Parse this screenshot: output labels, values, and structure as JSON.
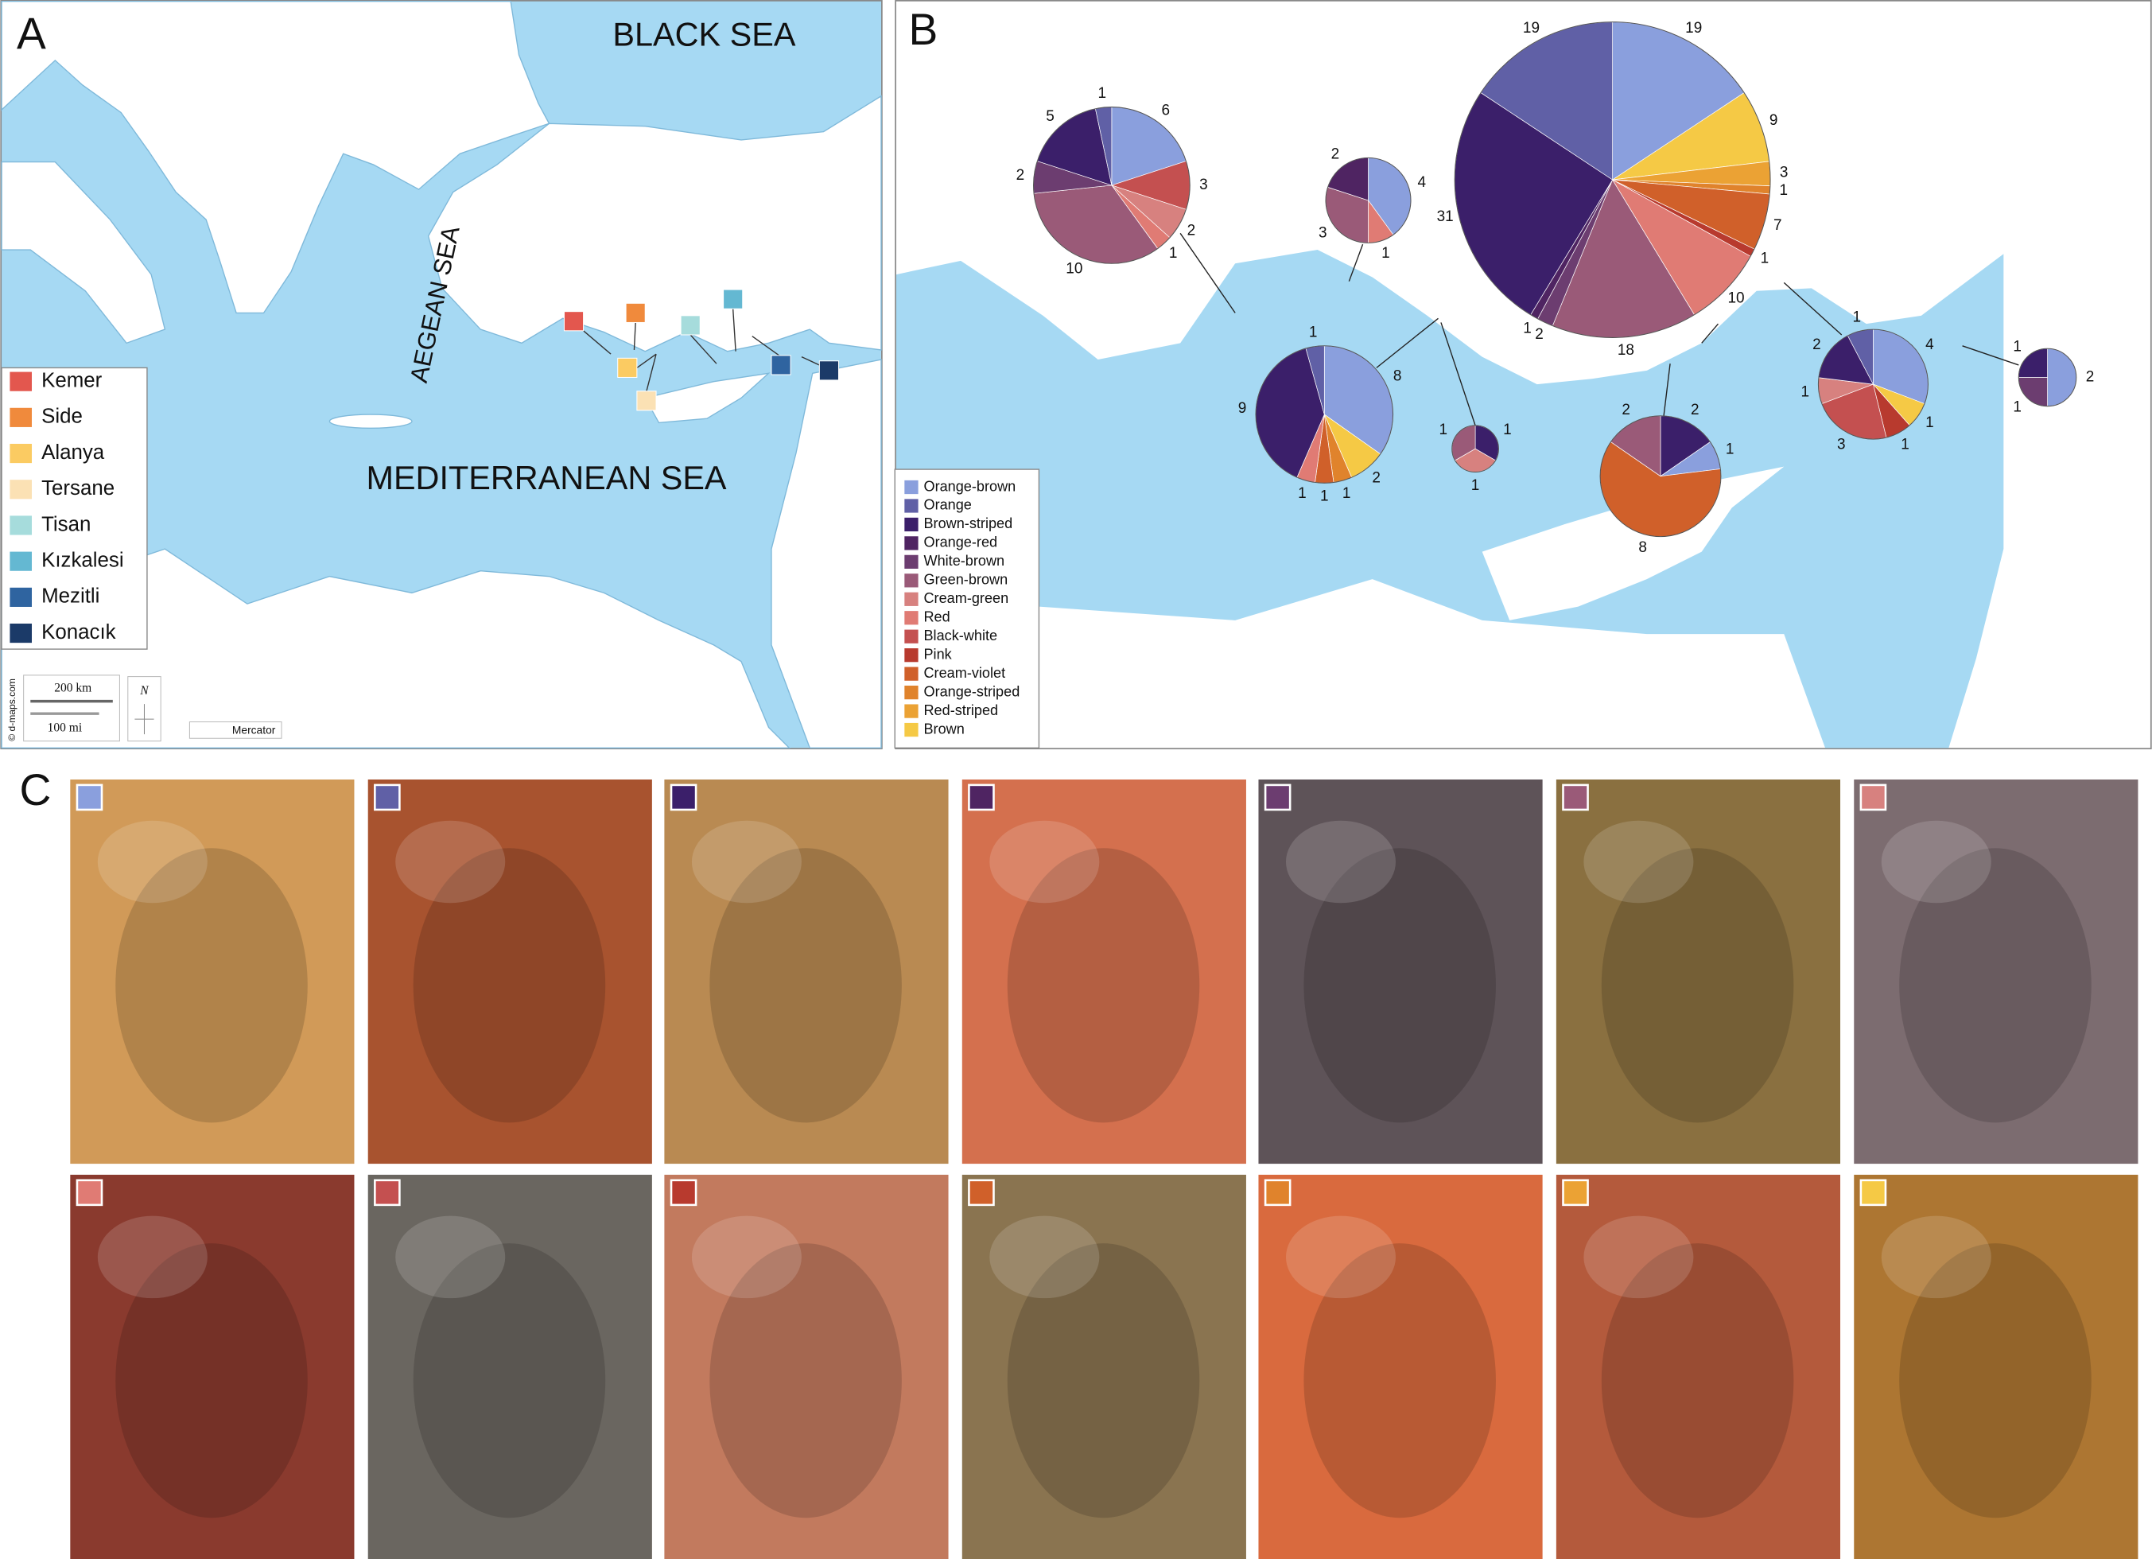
{
  "panels": {
    "a": "A",
    "b": "B",
    "c": "C"
  },
  "map_a": {
    "sea_labels": [
      "BLACK SEA",
      "AEGEAN SEA",
      "MEDITERRANEAN SEA"
    ],
    "sites": [
      {
        "name": "Kemer",
        "color": "#e3574e"
      },
      {
        "name": "Side",
        "color": "#f08a3c"
      },
      {
        "name": "Alanya",
        "color": "#fbcb62"
      },
      {
        "name": "Tersane",
        "color": "#fbe1b4"
      },
      {
        "name": "Tisan",
        "color": "#a6dcdc"
      },
      {
        "name": "Kızkalesi",
        "color": "#64b8d2"
      },
      {
        "name": "Mezitli",
        "color": "#2f64a0"
      },
      {
        "name": "Konacık",
        "color": "#1b3a68"
      }
    ],
    "scale": [
      "200 km",
      "100 mi"
    ],
    "north": "N",
    "projection": "Mercator",
    "credit": "© d-maps.com"
  },
  "morphs": [
    {
      "name": "Orange-brown",
      "color": "#8a9fdd"
    },
    {
      "name": "Orange",
      "color": "#6060a6"
    },
    {
      "name": "Brown-striped",
      "color": "#3b1f6a"
    },
    {
      "name": "Orange-red",
      "color": "#4f2462"
    },
    {
      "name": "White-brown",
      "color": "#6c3d70"
    },
    {
      "name": "Green-brown",
      "color": "#9a5a78"
    },
    {
      "name": "Cream-green",
      "color": "#d7817f"
    },
    {
      "name": "Red",
      "color": "#e07b74"
    },
    {
      "name": "Black-white",
      "color": "#c45050"
    },
    {
      "name": "Pink",
      "color": "#b83a2e"
    },
    {
      "name": "Cream-violet",
      "color": "#d0602a"
    },
    {
      "name": "Orange-striped",
      "color": "#e0832c"
    },
    {
      "name": "Red-striped",
      "color": "#eba234"
    },
    {
      "name": "Brown",
      "color": "#f5c945"
    }
  ],
  "pies": [
    {
      "slices": [
        {
          "color": "#8a9fdd",
          "value": 6
        },
        {
          "color": "#c45050",
          "value": 3
        },
        {
          "color": "#d7817f",
          "value": 2
        },
        {
          "color": "#e07b74",
          "value": 1
        },
        {
          "color": "#9a5a78",
          "value": 10
        },
        {
          "color": "#6c3d70",
          "value": 2
        },
        {
          "color": "#3b1f6a",
          "value": 5
        },
        {
          "color": "#6060a6",
          "value": 1
        }
      ]
    },
    {
      "slices": [
        {
          "color": "#8a9fdd",
          "value": 4
        },
        {
          "color": "#e07b74",
          "value": 1
        },
        {
          "color": "#9a5a78",
          "value": 3
        },
        {
          "color": "#4f2462",
          "value": 2
        }
      ]
    },
    {
      "slices": [
        {
          "color": "#8a9fdd",
          "value": 19
        },
        {
          "color": "#f5c945",
          "value": 9
        },
        {
          "color": "#eba234",
          "value": 3
        },
        {
          "color": "#e0832c",
          "value": 1
        },
        {
          "color": "#d0602a",
          "value": 7
        },
        {
          "color": "#b83a2e",
          "value": 1
        },
        {
          "color": "#e07b74",
          "value": 10
        },
        {
          "color": "#9a5a78",
          "value": 18
        },
        {
          "color": "#6c3d70",
          "value": 2
        },
        {
          "color": "#4f2462",
          "value": 1
        },
        {
          "color": "#3b1f6a",
          "value": 31
        },
        {
          "color": "#6060a6",
          "value": 19
        }
      ]
    },
    {
      "slices": [
        {
          "color": "#8a9fdd",
          "value": 8
        },
        {
          "color": "#f5c945",
          "value": 2
        },
        {
          "color": "#e0832c",
          "value": 1
        },
        {
          "color": "#d0602a",
          "value": 1
        },
        {
          "color": "#e07b74",
          "value": 1
        },
        {
          "color": "#3b1f6a",
          "value": 9
        },
        {
          "color": "#6060a6",
          "value": 1
        }
      ]
    },
    {
      "slices": [
        {
          "color": "#3b1f6a",
          "value": 1
        },
        {
          "color": "#d7817f",
          "value": 1
        },
        {
          "color": "#9a5a78",
          "value": 1
        }
      ]
    },
    {
      "slices": [
        {
          "color": "#3b1f6a",
          "value": 2
        },
        {
          "color": "#8a9fdd",
          "value": 1
        },
        {
          "color": "#d0602a",
          "value": 8
        },
        {
          "color": "#9a5a78",
          "value": 2
        }
      ]
    },
    {
      "slices": [
        {
          "color": "#8a9fdd",
          "value": 4
        },
        {
          "color": "#f5c945",
          "value": 1
        },
        {
          "color": "#b83a2e",
          "value": 1
        },
        {
          "color": "#c45050",
          "value": 3
        },
        {
          "color": "#d7817f",
          "value": 1
        },
        {
          "color": "#3b1f6a",
          "value": 2
        },
        {
          "color": "#6060a6",
          "value": 1
        }
      ]
    },
    {
      "slices": [
        {
          "color": "#8a9fdd",
          "value": 2
        },
        {
          "color": "#6c3d70",
          "value": 1
        },
        {
          "color": "#3b1f6a",
          "value": 1
        }
      ]
    }
  ]
}
